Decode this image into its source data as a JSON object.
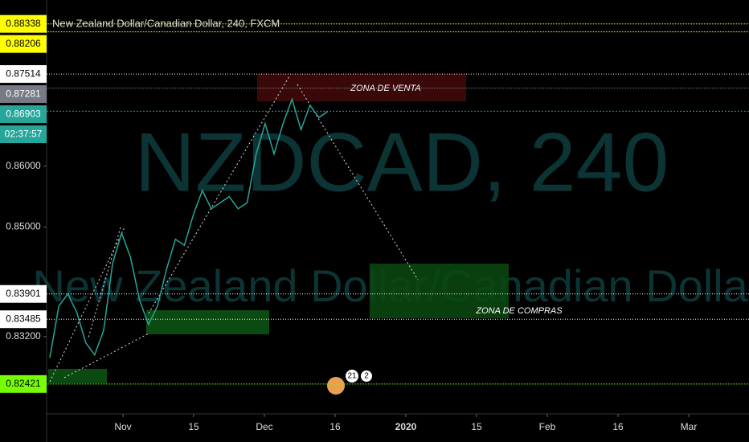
{
  "chart_data": {
    "type": "line",
    "title": "New Zealand Dollar/Canadian Dollar, 240, FXCM",
    "watermark": "NZDCAD, 240",
    "watermark_subtitle": "New Zealand Dollar/Canadian Dollar",
    "series": [
      {
        "color": "#26a69a",
        "values": [
          0.8285,
          0.837,
          0.839,
          0.836,
          0.831,
          0.829,
          0.833,
          0.844,
          0.849,
          0.845,
          0.838,
          0.834,
          0.837,
          0.843,
          0.848,
          0.847,
          0.852,
          0.856,
          0.853,
          0.854,
          0.855,
          0.853,
          0.854,
          0.862,
          0.867,
          0.862,
          0.867,
          0.871,
          0.866,
          0.87,
          0.868,
          0.869
        ]
      }
    ],
    "ylim": [
      0.8193,
      0.8873
    ],
    "yticks": [
      {
        "value": 0.86,
        "label": "0.86000"
      },
      {
        "value": 0.85,
        "label": "0.85000"
      },
      {
        "value": 0.832,
        "label": "0.83200"
      }
    ],
    "price_levels": [
      {
        "value": 0.88338,
        "color": "#ffff00",
        "text_color": "#000000"
      },
      {
        "value": 0.88206,
        "color": "#ffff00",
        "text_color": "#000000"
      },
      {
        "value": 0.87514,
        "color": "#ffffff",
        "text_color": "#000000"
      },
      {
        "value": 0.87281,
        "color": "#787b86",
        "text_color": "#ffffff"
      },
      {
        "value": 0.86903,
        "color": "#26a69a",
        "text_color": "#ffffff"
      },
      {
        "value": 0.83901,
        "color": "#ffffff",
        "text_color": "#000000"
      },
      {
        "value": 0.83485,
        "color": "#ffffff",
        "text_color": "#000000"
      },
      {
        "value": 0.82421,
        "color": "#76ff03",
        "text_color": "#000000"
      }
    ],
    "countdown": "02:37:57",
    "xticks": [
      "Nov",
      "15",
      "Dec",
      "16",
      "2020",
      "15",
      "Feb",
      "16",
      "Mar"
    ],
    "annotations": [
      "ZONA DE VENTA",
      "ZONA DE COMPRAS"
    ],
    "badges": [
      "21",
      "2"
    ]
  }
}
